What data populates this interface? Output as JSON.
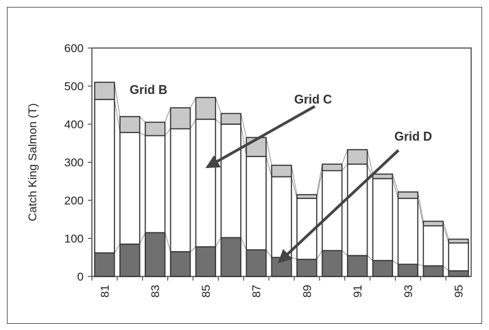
{
  "chart_data": {
    "type": "bar",
    "stacked": true,
    "ylabel": "Catch King Salmon (T)",
    "xlabel": "",
    "ylim": [
      0,
      600
    ],
    "yticks": [
      0,
      100,
      200,
      300,
      400,
      500,
      600
    ],
    "xtick_labels": [
      "81",
      "83",
      "85",
      "87",
      "89",
      "91",
      "93",
      "95"
    ],
    "categories": [
      "81",
      "82",
      "83",
      "84",
      "85",
      "86",
      "87",
      "88",
      "89",
      "90",
      "91",
      "92",
      "93",
      "94",
      "95"
    ],
    "series": [
      {
        "values": [
          62,
          85,
          115,
          65,
          78,
          102,
          70,
          50,
          45,
          68,
          55,
          42,
          32,
          28,
          15
        ],
        "color": "#707070"
      },
      {
        "values": [
          403,
          293,
          255,
          323,
          335,
          298,
          245,
          212,
          160,
          210,
          240,
          215,
          173,
          105,
          73
        ],
        "color": "#ffffff"
      },
      {
        "values": [
          45,
          42,
          35,
          55,
          57,
          28,
          50,
          30,
          10,
          17,
          38,
          12,
          17,
          12,
          10
        ],
        "color": "#c8c8c8"
      }
    ],
    "connector_lines": true,
    "annotations": [
      {
        "text": "Grid B",
        "arrow": false
      },
      {
        "text": "Grid C",
        "arrow": true,
        "from_near": "Grid C",
        "points_to_series": 1,
        "at_category": "85"
      },
      {
        "text": "Grid D",
        "arrow": true,
        "from_near": "Grid D",
        "points_to_series": 0,
        "at_category": "88"
      }
    ],
    "grid": false,
    "legend": "none"
  }
}
